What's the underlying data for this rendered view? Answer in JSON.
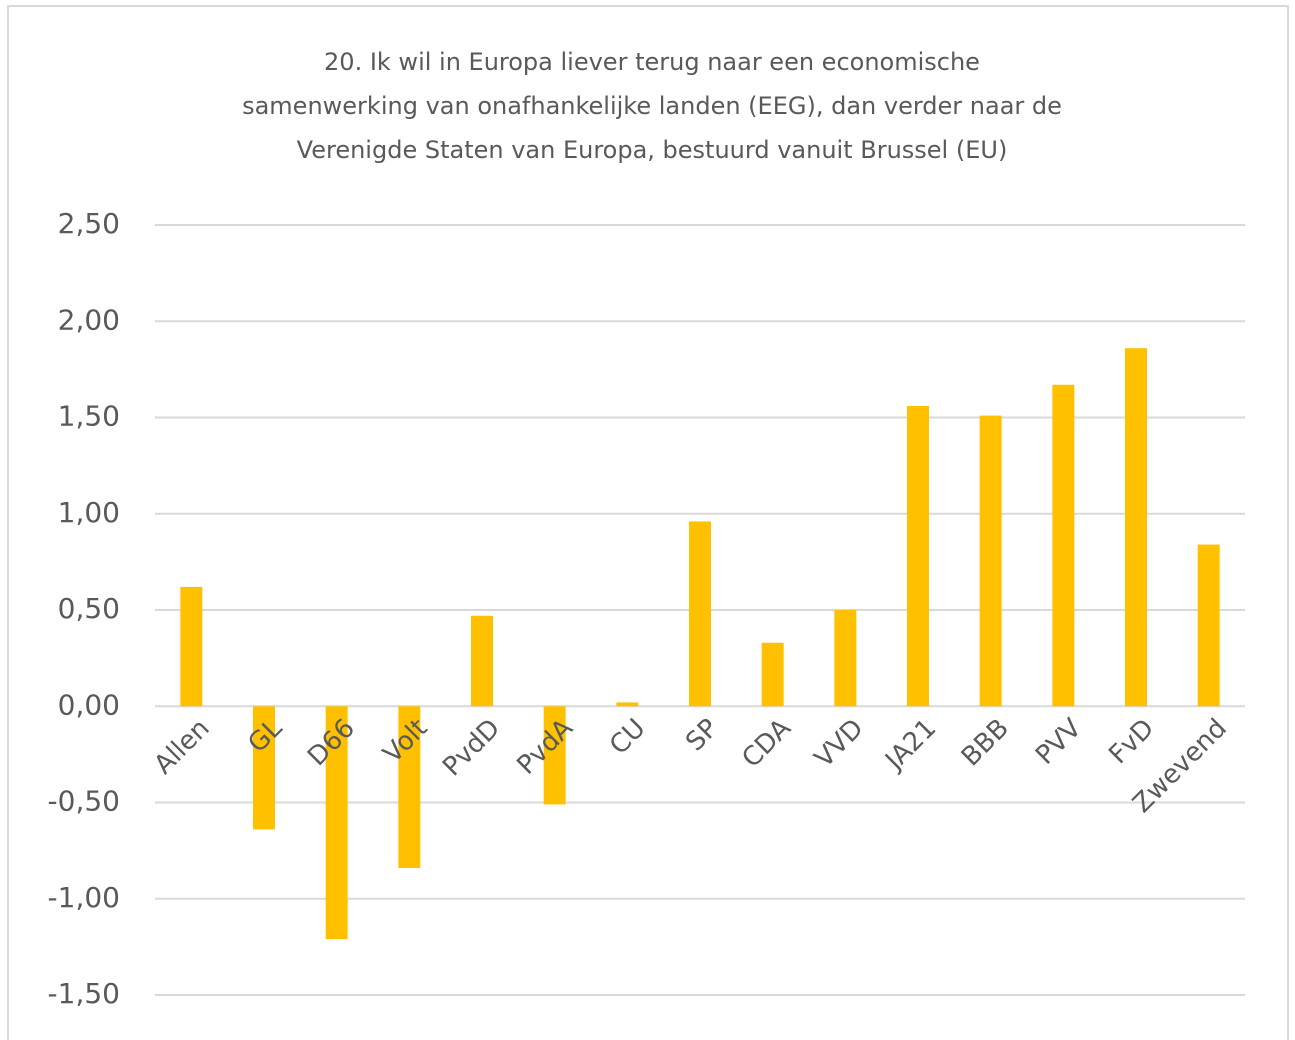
{
  "chart_data": {
    "type": "bar",
    "title": [
      "20. Ik wil in Europa liever terug naar een economische",
      "samenwerking van onafhankelijke landen (EEG), dan verder naar de",
      "Verenigde Staten van Europa, bestuurd vanuit Brussel (EU)"
    ],
    "categories": [
      "Allen",
      "GL",
      "D66",
      "Volt",
      "PvdD",
      "PvdA",
      "CU",
      "SP",
      "CDA",
      "VVD",
      "JA21",
      "BBB",
      "PVV",
      "FvD",
      "Zwevend"
    ],
    "values": [
      0.62,
      -0.64,
      -1.21,
      -0.84,
      0.47,
      -0.51,
      0.02,
      0.96,
      0.33,
      0.5,
      1.56,
      1.51,
      1.67,
      1.86,
      0.84
    ],
    "color": "#ffc000",
    "ylim": [
      -1.5,
      2.5
    ],
    "yticks": [
      {
        "value": -1.5,
        "label": "-1,50"
      },
      {
        "value": -1,
        "label": "-1,00"
      },
      {
        "value": -0.5,
        "label": "-0,50"
      },
      {
        "value": 0,
        "label": "0,00"
      },
      {
        "value": 0.5,
        "label": "0,50"
      },
      {
        "value": 1,
        "label": "1,00"
      },
      {
        "value": 1.5,
        "label": "1,50"
      },
      {
        "value": 2,
        "label": "2,00"
      },
      {
        "value": 2.5,
        "label": "2,50"
      }
    ],
    "grid": true
  }
}
